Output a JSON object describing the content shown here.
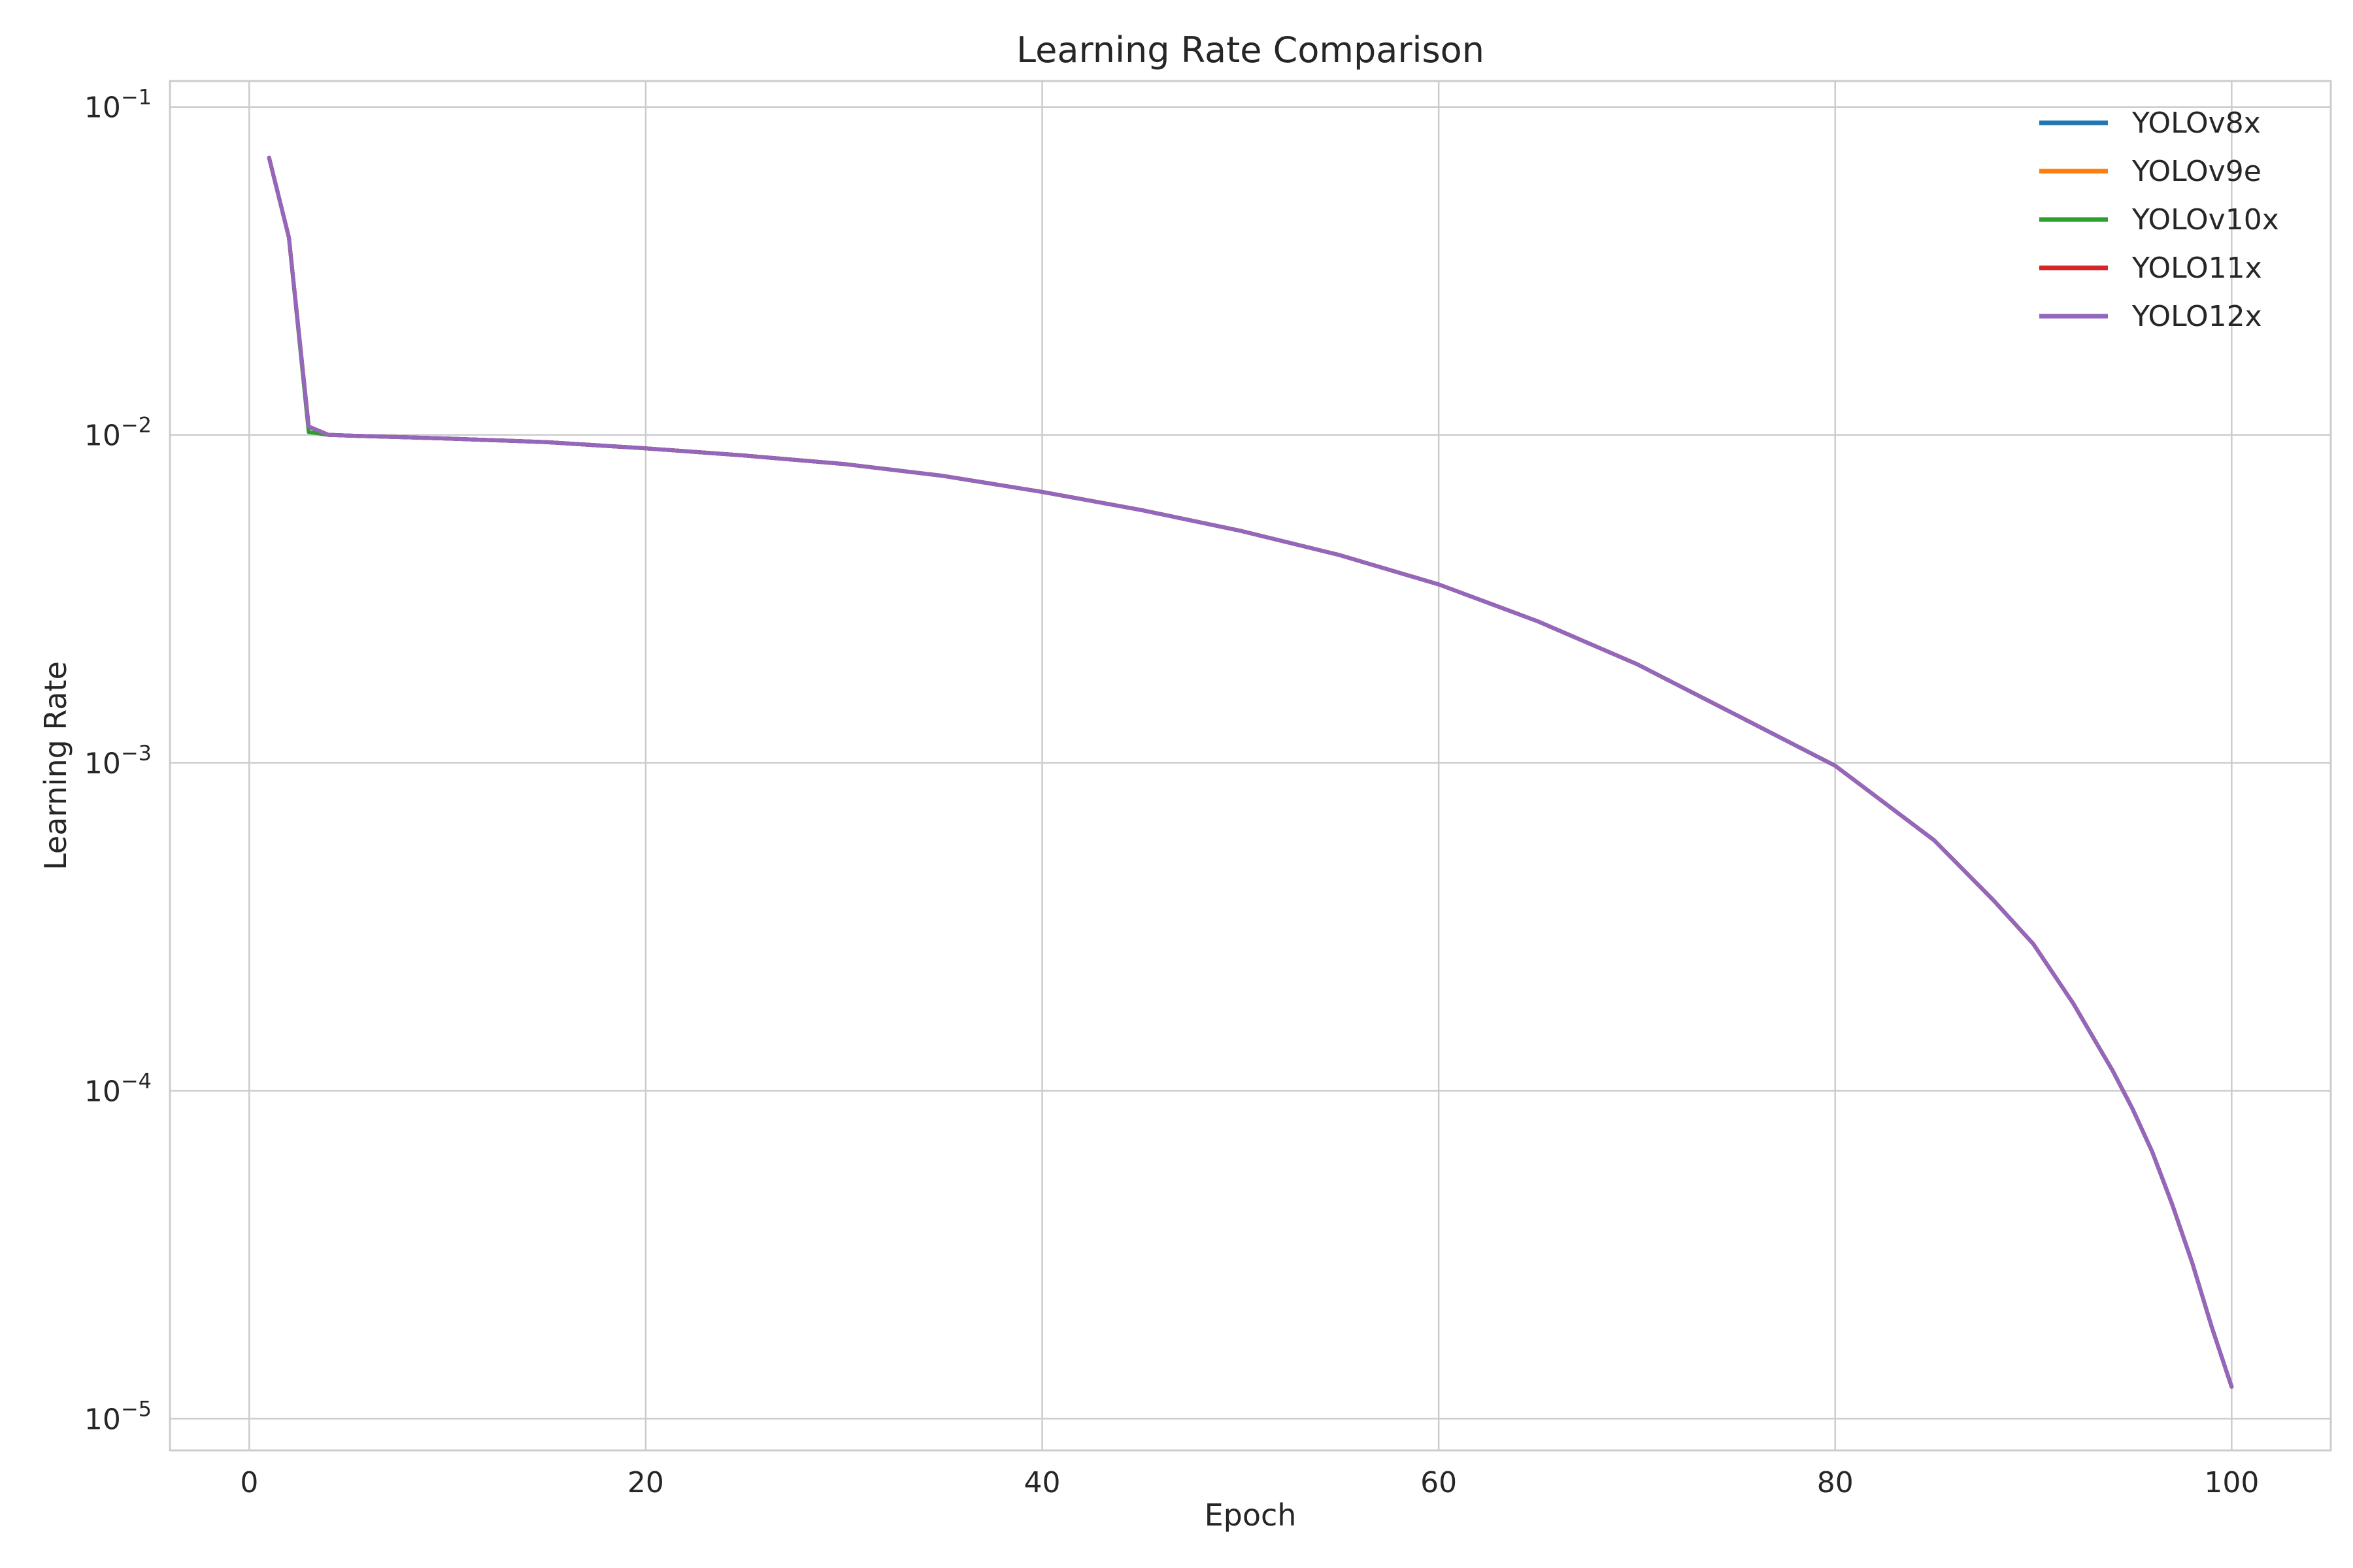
{
  "chart_data": {
    "type": "line",
    "title": "Learning Rate Comparison",
    "xlabel": "Epoch",
    "ylabel": "Learning Rate",
    "xlim": [
      -4,
      105
    ],
    "ylim": [
      8e-06,
      0.12
    ],
    "yscale": "log",
    "grid": true,
    "legend_position": "top-right",
    "x_ticks": [
      0,
      20,
      40,
      60,
      80,
      100
    ],
    "y_ticks": [
      {
        "value": 0.1,
        "base": "10",
        "exp": "−1"
      },
      {
        "value": 0.01,
        "base": "10",
        "exp": "−2"
      },
      {
        "value": 0.001,
        "base": "10",
        "exp": "−3"
      },
      {
        "value": 0.0001,
        "base": "10",
        "exp": "−4"
      },
      {
        "value": 1e-05,
        "base": "10",
        "exp": "−5"
      }
    ],
    "x": [
      1,
      2,
      3,
      4,
      5,
      10,
      15,
      20,
      25,
      30,
      35,
      40,
      45,
      50,
      55,
      60,
      65,
      70,
      75,
      80,
      85,
      88,
      90,
      92,
      94,
      95,
      96,
      97,
      98,
      99,
      100
    ],
    "series": [
      {
        "name": "YOLOv8x",
        "color": "#1f77b4",
        "values": [
          0.07,
          0.04,
          0.0106,
          0.01,
          0.00995,
          0.00975,
          0.0095,
          0.0091,
          0.00865,
          0.00815,
          0.0075,
          0.0067,
          0.0059,
          0.0051,
          0.0043,
          0.0035,
          0.0027,
          0.002,
          0.0014,
          0.00098,
          0.00058,
          0.00038,
          0.00028,
          0.000185,
          0.000115,
          8.8e-05,
          6.5e-05,
          4.5e-05,
          3e-05,
          1.9e-05,
          1.25e-05
        ]
      },
      {
        "name": "YOLOv9e",
        "color": "#ff7f0e",
        "values": [
          0.07,
          0.04,
          0.0106,
          0.01,
          0.00995,
          0.00975,
          0.0095,
          0.0091,
          0.00865,
          0.00815,
          0.0075,
          0.0067,
          0.0059,
          0.0051,
          0.0043,
          0.0035,
          0.0027,
          0.002,
          0.0014,
          0.00098,
          0.00058,
          0.00038,
          0.00028,
          0.000185,
          0.000115,
          8.8e-05,
          6.5e-05,
          4.5e-05,
          3e-05,
          1.9e-05,
          1.25e-05
        ]
      },
      {
        "name": "YOLOv10x",
        "color": "#2ca02c",
        "values": [
          0.07,
          0.04,
          0.0102,
          0.01,
          0.00995,
          0.00975,
          0.0095,
          0.0091,
          0.00865,
          0.00815,
          0.0075,
          0.0067,
          0.0059,
          0.0051,
          0.0043,
          0.0035,
          0.0027,
          0.002,
          0.0014,
          0.00098,
          0.00058,
          0.00038,
          0.00028,
          0.000185,
          0.000115,
          8.8e-05,
          6.5e-05,
          4.5e-05,
          3e-05,
          1.9e-05,
          1.25e-05
        ]
      },
      {
        "name": "YOLO11x",
        "color": "#d62728",
        "values": [
          0.07,
          0.04,
          0.0106,
          0.01,
          0.00995,
          0.00975,
          0.0095,
          0.0091,
          0.00865,
          0.00815,
          0.0075,
          0.0067,
          0.0059,
          0.0051,
          0.0043,
          0.0035,
          0.0027,
          0.002,
          0.0014,
          0.00098,
          0.00058,
          0.00038,
          0.00028,
          0.000185,
          0.000115,
          8.8e-05,
          6.5e-05,
          4.5e-05,
          3e-05,
          1.9e-05,
          1.25e-05
        ]
      },
      {
        "name": "YOLO12x",
        "color": "#9467bd",
        "values": [
          0.07,
          0.04,
          0.0106,
          0.01,
          0.00995,
          0.00975,
          0.0095,
          0.0091,
          0.00865,
          0.00815,
          0.0075,
          0.0067,
          0.0059,
          0.0051,
          0.0043,
          0.0035,
          0.0027,
          0.002,
          0.0014,
          0.00098,
          0.00058,
          0.00038,
          0.00028,
          0.000185,
          0.000115,
          8.8e-05,
          6.5e-05,
          4.5e-05,
          3e-05,
          1.9e-05,
          1.25e-05
        ]
      }
    ]
  }
}
